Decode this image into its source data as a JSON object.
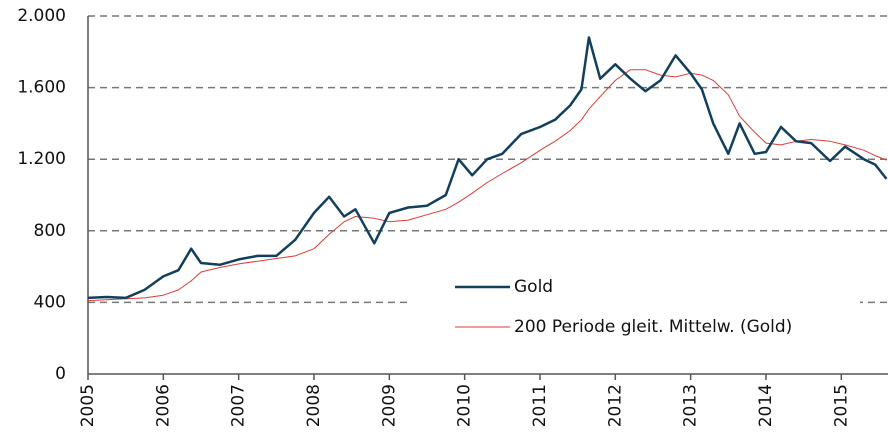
{
  "chart_data": {
    "type": "line",
    "x": [
      2005.0,
      2005.25,
      2005.5,
      2005.75,
      2006.0,
      2006.2,
      2006.37,
      2006.5,
      2006.75,
      2007.0,
      2007.25,
      2007.5,
      2007.75,
      2008.0,
      2008.2,
      2008.4,
      2008.55,
      2008.8,
      2009.0,
      2009.25,
      2009.5,
      2009.75,
      2009.92,
      2010.1,
      2010.3,
      2010.5,
      2010.75,
      2011.0,
      2011.2,
      2011.4,
      2011.55,
      2011.65,
      2011.8,
      2012.0,
      2012.2,
      2012.4,
      2012.6,
      2012.8,
      2013.0,
      2013.15,
      2013.3,
      2013.5,
      2013.65,
      2013.85,
      2014.0,
      2014.2,
      2014.4,
      2014.6,
      2014.85,
      2015.05,
      2015.3,
      2015.45,
      2015.6
    ],
    "series": [
      {
        "name": "Gold",
        "color": "#123f5c",
        "values": [
          425,
          430,
          425,
          470,
          545,
          580,
          700,
          620,
          610,
          640,
          660,
          660,
          750,
          900,
          990,
          880,
          920,
          730,
          900,
          930,
          940,
          1000,
          1200,
          1110,
          1200,
          1230,
          1340,
          1380,
          1420,
          1500,
          1590,
          1880,
          1650,
          1730,
          1650,
          1580,
          1640,
          1780,
          1680,
          1590,
          1400,
          1230,
          1400,
          1230,
          1240,
          1380,
          1300,
          1290,
          1190,
          1270,
          1200,
          1170,
          1090
        ]
      },
      {
        "name": "200 Periode gleit. Mittelw. (Gold)",
        "color": "#e03a3a",
        "values": [
          410,
          415,
          420,
          425,
          440,
          470,
          520,
          570,
          595,
          615,
          630,
          645,
          660,
          700,
          780,
          850,
          880,
          870,
          850,
          860,
          890,
          920,
          960,
          1010,
          1070,
          1120,
          1180,
          1250,
          1300,
          1360,
          1420,
          1480,
          1550,
          1640,
          1700,
          1700,
          1670,
          1660,
          1680,
          1670,
          1640,
          1560,
          1440,
          1350,
          1290,
          1280,
          1300,
          1310,
          1300,
          1280,
          1250,
          1220,
          1195
        ]
      }
    ],
    "xlim": [
      2005,
      2015.62
    ],
    "xticks": [
      2005,
      2006,
      2007,
      2008,
      2009,
      2010,
      2011,
      2012,
      2013,
      2014,
      2015
    ],
    "ylim": [
      0,
      2000
    ],
    "yticks": [
      0,
      400,
      800,
      {
        "value": 1200,
        "label": "1.200"
      },
      {
        "value": 1600,
        "label": "1.600"
      },
      {
        "value": 2000,
        "label": "2.000"
      }
    ],
    "grid": true
  }
}
